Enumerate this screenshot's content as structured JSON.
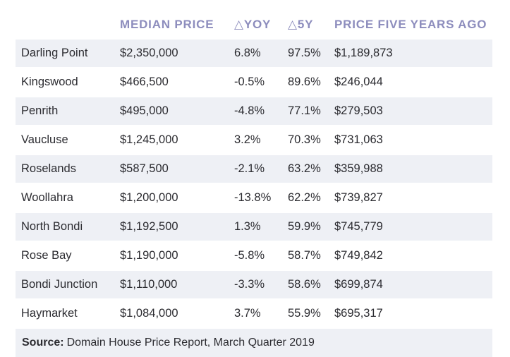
{
  "chart_data": {
    "type": "table",
    "columns": [
      "",
      "MEDIAN PRICE",
      "△YOY",
      "△5Y",
      "PRICE FIVE YEARS AGO"
    ],
    "rows": [
      [
        "Darling Point",
        "$2,350,000",
        "6.8%",
        "97.5%",
        "$1,189,873"
      ],
      [
        "Kingswood",
        "$466,500",
        "-0.5%",
        "89.6%",
        "$246,044"
      ],
      [
        "Penrith",
        "$495,000",
        "-4.8%",
        "77.1%",
        "$279,503"
      ],
      [
        "Vaucluse",
        "$1,245,000",
        "3.2%",
        "70.3%",
        "$731,063"
      ],
      [
        "Roselands",
        "$587,500",
        "-2.1%",
        "63.2%",
        "$359,988"
      ],
      [
        "Woollahra",
        "$1,200,000",
        "-13.8%",
        "62.2%",
        "$739,827"
      ],
      [
        "North Bondi",
        "$1,192,500",
        "1.3%",
        "59.9%",
        "$745,779"
      ],
      [
        "Rose Bay",
        "$1,190,000",
        "-5.8%",
        "58.7%",
        "$749,842"
      ],
      [
        "Bondi Junction",
        "$1,110,000",
        "-3.3%",
        "58.6%",
        "$699,874"
      ],
      [
        "Haymarket",
        "$1,084,000",
        "3.7%",
        "55.9%",
        "$695,317"
      ]
    ],
    "source_label": "Source:",
    "source_text": "Domain House Price Report, March Quarter 2019"
  },
  "colors": {
    "header_text": "#8d8dbd",
    "stripe": "#eef0f5",
    "body_text": "#2b2b30"
  }
}
